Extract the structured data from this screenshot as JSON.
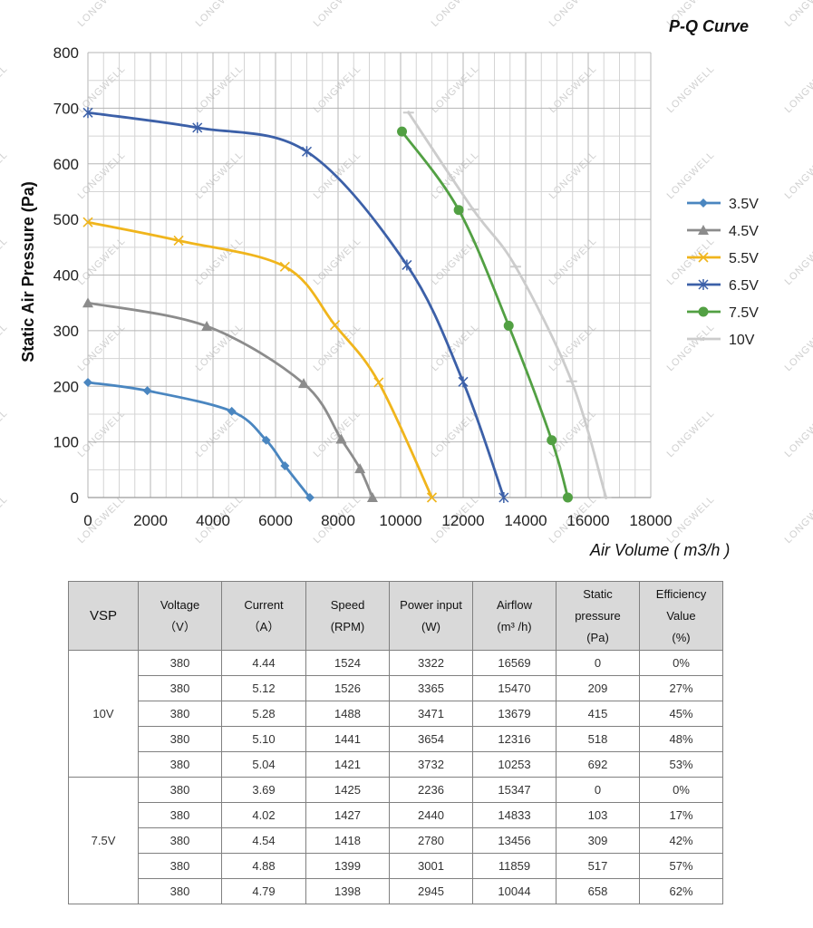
{
  "chart_data": {
    "type": "line",
    "title": "P-Q Curve",
    "xlabel": "Air Volume ( m3/h )",
    "ylabel": "Static Air Pressure  (Pa)",
    "xlim": [
      0,
      18000
    ],
    "ylim": [
      0,
      800
    ],
    "x_ticks": [
      "0",
      "2000",
      "4000",
      "6000",
      "8000",
      "10000",
      "12000",
      "14000",
      "16000",
      "18000"
    ],
    "y_ticks": [
      "0",
      "100",
      "200",
      "300",
      "400",
      "500",
      "600",
      "700",
      "800"
    ],
    "grid": true,
    "legend_position": "right",
    "series": [
      {
        "name": "3.5V",
        "color": "#4a86c0",
        "marker": "diamond",
        "x": [
          0,
          1900,
          4600,
          5700,
          6300,
          7100
        ],
        "y": [
          207,
          192,
          155,
          103,
          57,
          0
        ]
      },
      {
        "name": "4.5V",
        "color": "#8c8c8c",
        "marker": "triangle",
        "x": [
          0,
          3800,
          6900,
          8100,
          8700,
          9100
        ],
        "y": [
          350,
          308,
          205,
          105,
          52,
          0
        ]
      },
      {
        "name": "5.5V",
        "color": "#f0b51c",
        "marker": "x",
        "x": [
          0,
          2900,
          6300,
          7900,
          9300,
          11000
        ],
        "y": [
          495,
          462,
          415,
          310,
          207,
          0
        ]
      },
      {
        "name": "6.5V",
        "color": "#3c60a8",
        "marker": "star",
        "x": [
          0,
          3500,
          7000,
          10200,
          12000,
          13300
        ],
        "y": [
          692,
          665,
          622,
          418,
          208,
          0
        ]
      },
      {
        "name": "7.5V",
        "color": "#52a043",
        "marker": "circle",
        "x": [
          10044,
          11859,
          13456,
          14833,
          15347
        ],
        "y": [
          658,
          517,
          309,
          103,
          0
        ]
      },
      {
        "name": "10V",
        "color": "#cccccc",
        "marker": "plus",
        "x": [
          10253,
          12316,
          13679,
          15470,
          16569
        ],
        "y": [
          692,
          518,
          415,
          209,
          0
        ]
      }
    ]
  },
  "watermark_text": "LONGWELL",
  "table": {
    "headers": [
      "VSP",
      "Voltage\n（V）",
      "Current\n（A）",
      "Speed\n(RPM)",
      "Power input\n(W)",
      "Airflow\n(m³ /h)",
      "Static\npressure\n(Pa)",
      "Efficiency\nValue\n(%)"
    ],
    "groups": [
      {
        "label": "10V",
        "rows": [
          [
            "380",
            "4.44",
            "1524",
            "3322",
            "16569",
            "0",
            "0%"
          ],
          [
            "380",
            "5.12",
            "1526",
            "3365",
            "15470",
            "209",
            "27%"
          ],
          [
            "380",
            "5.28",
            "1488",
            "3471",
            "13679",
            "415",
            "45%"
          ],
          [
            "380",
            "5.10",
            "1441",
            "3654",
            "12316",
            "518",
            "48%"
          ],
          [
            "380",
            "5.04",
            "1421",
            "3732",
            "10253",
            "692",
            "53%"
          ]
        ]
      },
      {
        "label": "7.5V",
        "rows": [
          [
            "380",
            "3.69",
            "1425",
            "2236",
            "15347",
            "0",
            "0%"
          ],
          [
            "380",
            "4.02",
            "1427",
            "2440",
            "14833",
            "103",
            "17%"
          ],
          [
            "380",
            "4.54",
            "1418",
            "2780",
            "13456",
            "309",
            "42%"
          ],
          [
            "380",
            "4.88",
            "1399",
            "3001",
            "11859",
            "517",
            "57%"
          ],
          [
            "380",
            "4.79",
            "1398",
            "2945",
            "10044",
            "658",
            "62%"
          ]
        ]
      }
    ]
  }
}
